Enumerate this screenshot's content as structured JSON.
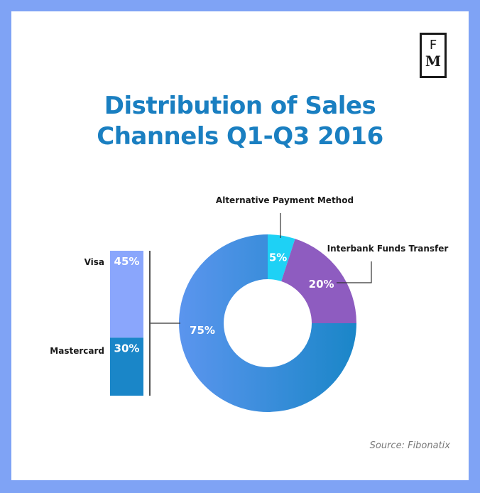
{
  "logo": {
    "top": "F",
    "bottom": "M"
  },
  "title_line1": "Distribution of Sales",
  "title_line2": "Channels Q1-Q3 2016",
  "source": "Source: Fibonatix",
  "colors": {
    "background_frame": "#7fa3f5",
    "title": "#1a7fc1",
    "cards": "#5b95ee",
    "interbank": "#8e5cc0",
    "alternative": "#1ed1f5",
    "visa": "#8aa6fc",
    "mastercard": "#1a86c8"
  },
  "chart_data": [
    {
      "type": "pie",
      "variant": "donut",
      "slices": [
        {
          "label": "Alternative Payment Method",
          "value": 5,
          "display": "5%",
          "color": "#1ed1f5"
        },
        {
          "label": "Interbank Funds Transfer",
          "value": 20,
          "display": "20%",
          "color": "#8e5cc0"
        },
        {
          "label": "",
          "value": 75,
          "display": "75%",
          "color": "#5b95ee"
        }
      ]
    },
    {
      "type": "bar",
      "variant": "stacked",
      "categories": [
        "Visa",
        "Mastercard"
      ],
      "values": [
        45,
        30
      ],
      "displays": [
        "45%",
        "30%"
      ],
      "colors": [
        "#8aa6fc",
        "#1a86c8"
      ]
    }
  ]
}
